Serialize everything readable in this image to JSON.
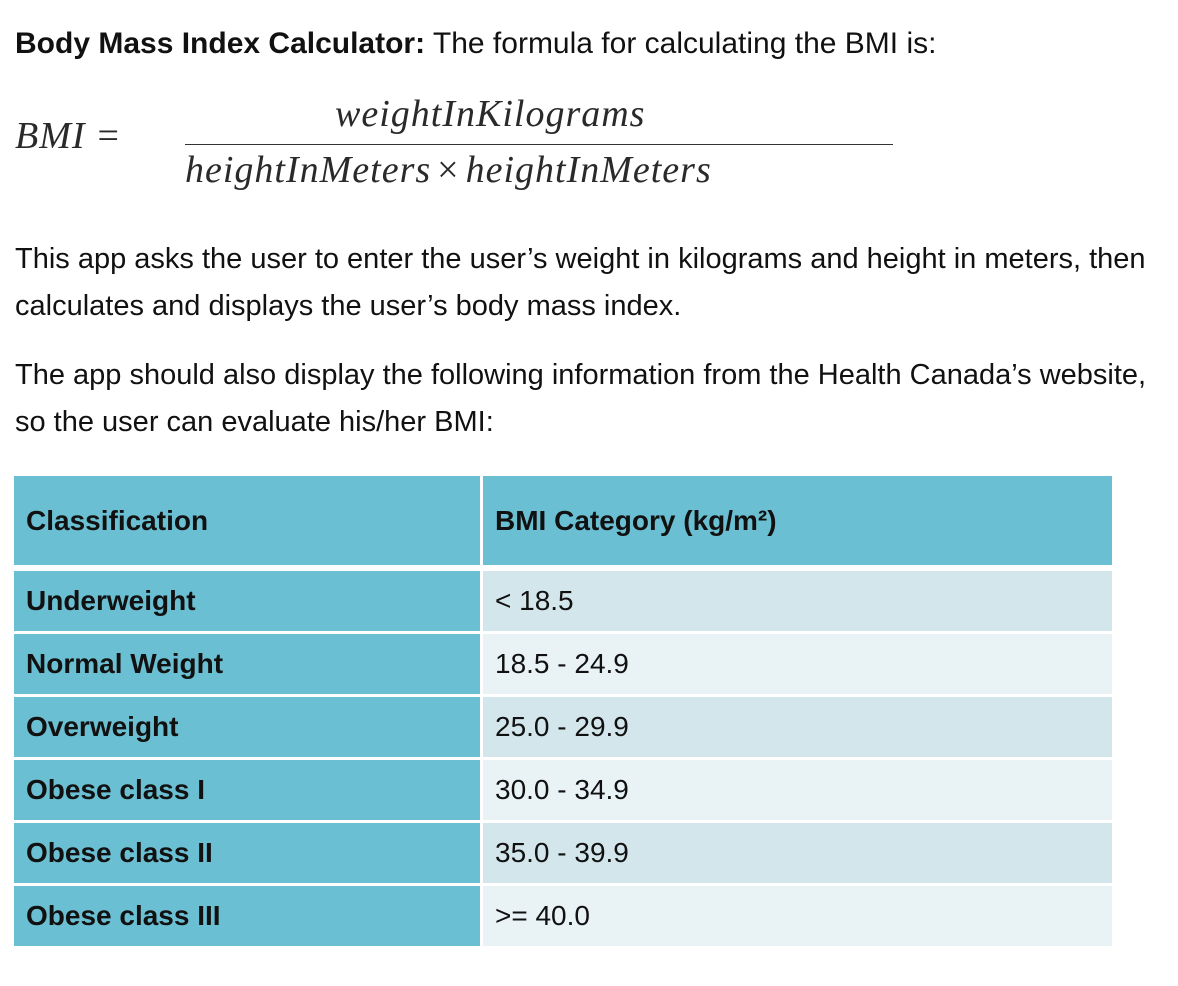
{
  "heading": {
    "bold": "Body Mass Index Calculator:",
    "rest": " The formula for calculating the BMI is:"
  },
  "formula": {
    "lhs": "BMI",
    "equals": "=",
    "numerator": "weightInKilograms",
    "denominator_left": "heightInMeters",
    "times": "×",
    "denominator_right": "heightInMeters"
  },
  "paragraphs": {
    "p1": "This app asks the user to enter the user’s weight in kilograms and height in meters, then calculates and displays the user’s body mass index.",
    "p2": "The app should also display the following information from the Health Canada’s website, so the user can evaluate his/her BMI:"
  },
  "table": {
    "headers": [
      "Classification",
      "BMI Category (kg/m²)"
    ],
    "rows": [
      {
        "classification": "Underweight",
        "category": "< 18.5"
      },
      {
        "classification": "Normal Weight",
        "category": "18.5 - 24.9"
      },
      {
        "classification": "Overweight",
        "category": "25.0 - 29.9"
      },
      {
        "classification": "Obese class I",
        "category": "30.0 - 34.9"
      },
      {
        "classification": "Obese class II",
        "category": "35.0 - 39.9"
      },
      {
        "classification": "Obese class III",
        "category": ">= 40.0"
      }
    ]
  },
  "colors": {
    "header_bg": "#6bbfd2",
    "row_light": "#e9f3f6",
    "row_dark": "#d3e6ec"
  }
}
